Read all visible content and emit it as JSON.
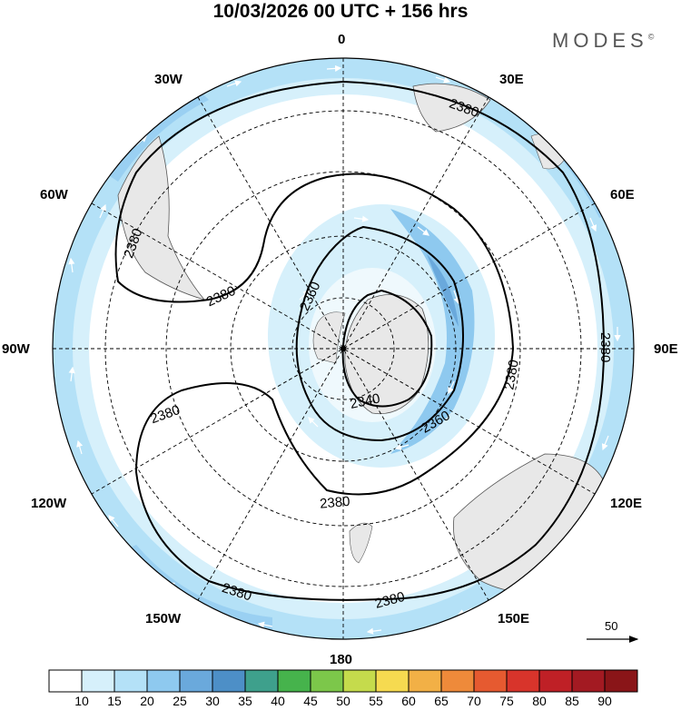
{
  "title": "10/03/2026  00 UTC  + 156 hrs",
  "brand": {
    "name": "MODES",
    "mark": "©"
  },
  "longitude_labels": {
    "n": "0",
    "s": "180",
    "e": "90E",
    "w": "90W",
    "ne30": "30E",
    "ne60": "60E",
    "se120": "120E",
    "se150": "150E",
    "nw30": "30W",
    "nw60": "60W",
    "sw120": "120W",
    "sw150": "150W"
  },
  "contours": {
    "outer_label": "2380",
    "mid_label": "2360",
    "inner_label": "2340"
  },
  "reference_vector": {
    "label": "50"
  },
  "colorbar": {
    "labels": [
      "10",
      "15",
      "20",
      "25",
      "30",
      "35",
      "40",
      "45",
      "50",
      "55",
      "60",
      "65",
      "70",
      "75",
      "80",
      "85",
      "90"
    ],
    "colors": [
      "#ffffff",
      "#d6f0fb",
      "#b4e1f7",
      "#8ec9ef",
      "#6aa9dc",
      "#4d8fc7",
      "#3ea08c",
      "#46b34c",
      "#7cc74a",
      "#c5db4c",
      "#f6da50",
      "#f2b046",
      "#ee8a3a",
      "#e65a30",
      "#d8342b",
      "#bf2026",
      "#a31a22",
      "#8a1518"
    ]
  },
  "colors": {
    "land": "#e8e8e8",
    "wind_light": "#d4eefa",
    "wind_mid": "#b2def4",
    "wind_strong": "#86c4ea",
    "wind_max": "#68a6d8"
  }
}
